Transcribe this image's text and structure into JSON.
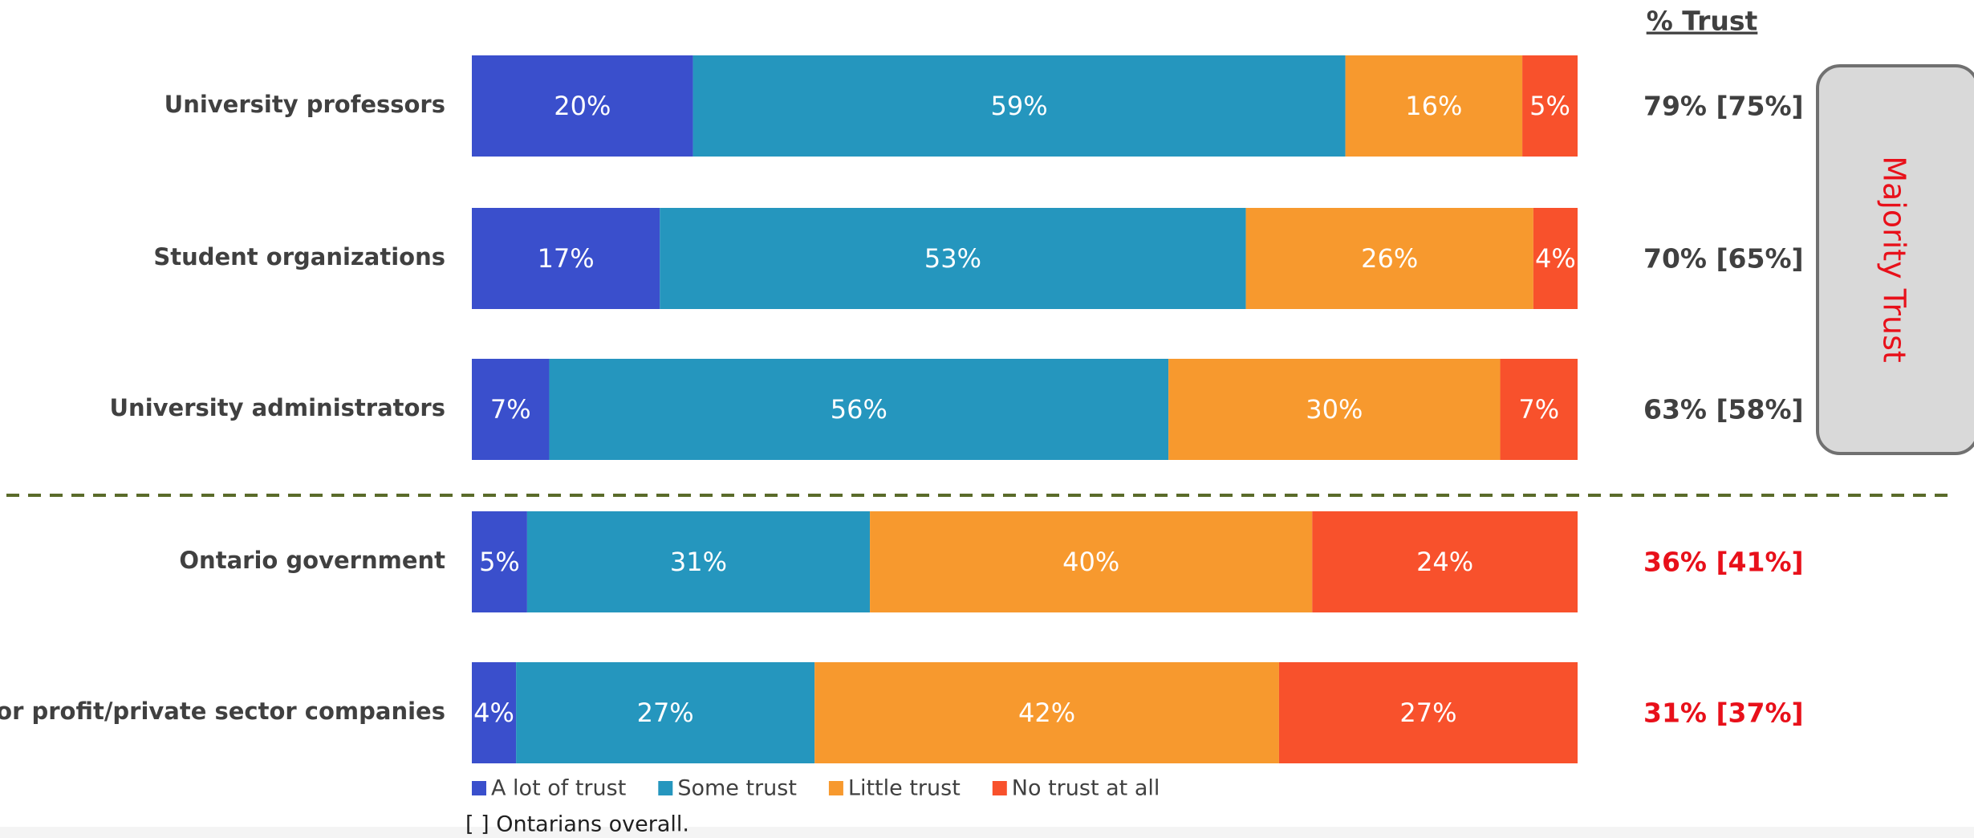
{
  "chart_data": {
    "type": "stacked-bar-horizontal",
    "categories": [
      "University professors",
      "Student organizations",
      "University administrators",
      "Ontario government",
      "For profit/private sector companies"
    ],
    "xlim": [
      0,
      100
    ],
    "series": [
      {
        "name": "A lot of trust",
        "color": "#3a4fcc",
        "values": [
          20,
          17,
          7,
          5,
          4
        ],
        "value_labels": [
          "20%",
          "17%",
          "7%",
          "5%",
          "4%"
        ]
      },
      {
        "name": "Some trust",
        "color": "#2596be",
        "values": [
          59,
          53,
          56,
          31,
          27
        ],
        "value_labels": [
          "59%",
          "53%",
          "56%",
          "31%",
          "27%"
        ]
      },
      {
        "name": "Little trust",
        "color": "#f7992e",
        "values": [
          16,
          26,
          30,
          40,
          42
        ],
        "value_labels": [
          "16%",
          "26%",
          "30%",
          "40%",
          "42%"
        ]
      },
      {
        "name": "No trust at all",
        "color": "#f8512c",
        "values": [
          5,
          4,
          7,
          24,
          27
        ],
        "value_labels": [
          "5%",
          "4%",
          "7%",
          "24%",
          "27%"
        ]
      }
    ],
    "trust_header": "% Trust",
    "trust_labels": [
      "79% [75%]",
      "70% [65%]",
      "63% [58%]",
      "36% [41%]",
      "31% [37%]"
    ],
    "trust_colors": [
      "#404040",
      "#404040",
      "#404040",
      "#e8101a",
      "#e8101a"
    ],
    "group_label": "Majority Trust",
    "footnote": "[ ] Ontarians overall."
  }
}
